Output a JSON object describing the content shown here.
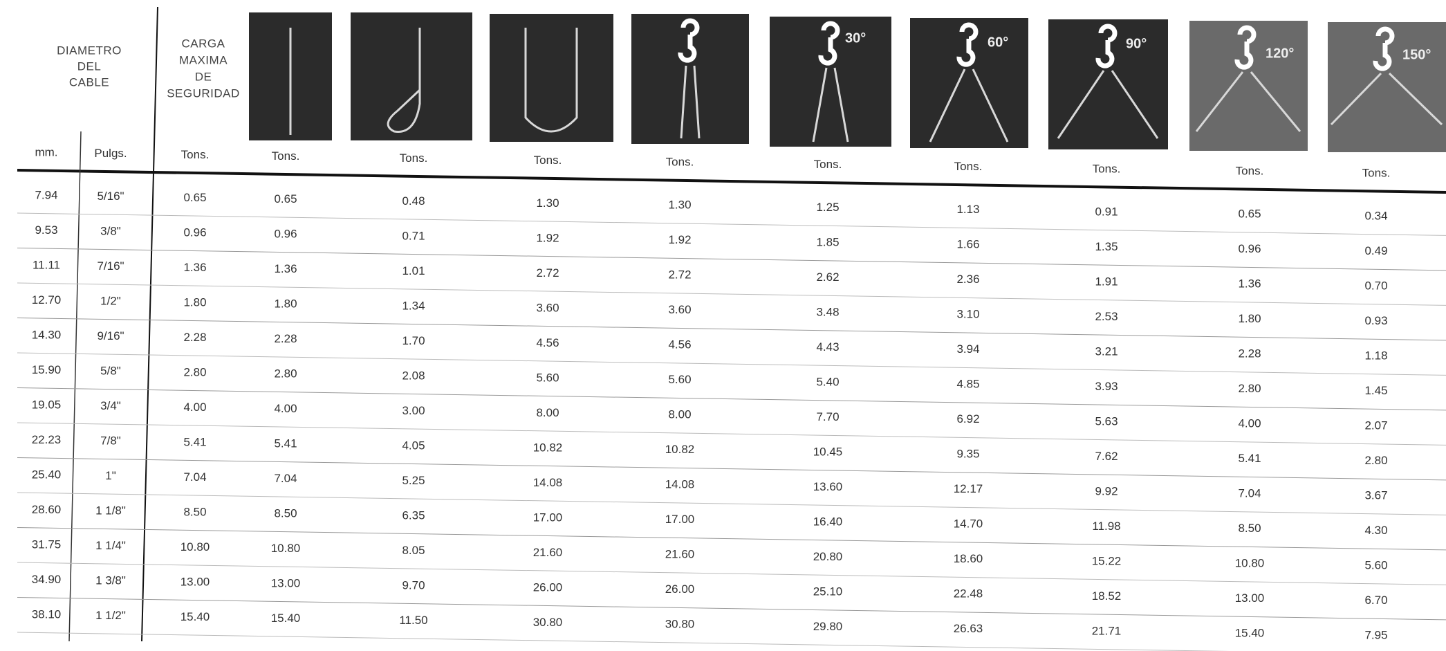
{
  "header": {
    "diameter_title": [
      "DIAMETRO",
      "DEL",
      "CABLE"
    ],
    "load_title": [
      "CARGA",
      "MAXIMA",
      "DE",
      "SEGURIDAD"
    ],
    "angles": [
      "30°",
      "60°",
      "90°",
      "120°",
      "150°"
    ],
    "units": [
      "mm.",
      "Pulgs.",
      "Tons.",
      "Tons.",
      "Tons.",
      "Tons.",
      "Tons.",
      "Tons.",
      "Tons.",
      "Tons.",
      "Tons.",
      "Tons."
    ]
  },
  "table": {
    "rows": [
      [
        "7.94",
        "5/16\"",
        "0.65",
        "0.65",
        "0.48",
        "1.30",
        "1.30",
        "1.25",
        "1.13",
        "0.91",
        "0.65",
        "0.34"
      ],
      [
        "9.53",
        "3/8\"",
        "0.96",
        "0.96",
        "0.71",
        "1.92",
        "1.92",
        "1.85",
        "1.66",
        "1.35",
        "0.96",
        "0.49"
      ],
      [
        "11.11",
        "7/16\"",
        "1.36",
        "1.36",
        "1.01",
        "2.72",
        "2.72",
        "2.62",
        "2.36",
        "1.91",
        "1.36",
        "0.70"
      ],
      [
        "12.70",
        "1/2\"",
        "1.80",
        "1.80",
        "1.34",
        "3.60",
        "3.60",
        "3.48",
        "3.10",
        "2.53",
        "1.80",
        "0.93"
      ],
      [
        "14.30",
        "9/16\"",
        "2.28",
        "2.28",
        "1.70",
        "4.56",
        "4.56",
        "4.43",
        "3.94",
        "3.21",
        "2.28",
        "1.18"
      ],
      [
        "15.90",
        "5/8\"",
        "2.80",
        "2.80",
        "2.08",
        "5.60",
        "5.60",
        "5.40",
        "4.85",
        "3.93",
        "2.80",
        "1.45"
      ],
      [
        "19.05",
        "3/4\"",
        "4.00",
        "4.00",
        "3.00",
        "8.00",
        "8.00",
        "7.70",
        "6.92",
        "5.63",
        "4.00",
        "2.07"
      ],
      [
        "22.23",
        "7/8\"",
        "5.41",
        "5.41",
        "4.05",
        "10.82",
        "10.82",
        "10.45",
        "9.35",
        "7.62",
        "5.41",
        "2.80"
      ],
      [
        "25.40",
        "1\"",
        "7.04",
        "7.04",
        "5.25",
        "14.08",
        "14.08",
        "13.60",
        "12.17",
        "9.92",
        "7.04",
        "3.67"
      ],
      [
        "28.60",
        "1 1/8\"",
        "8.50",
        "8.50",
        "6.35",
        "17.00",
        "17.00",
        "16.40",
        "14.70",
        "11.98",
        "8.50",
        "4.30"
      ],
      [
        "31.75",
        "1 1/4\"",
        "10.80",
        "10.80",
        "8.05",
        "21.60",
        "21.60",
        "20.80",
        "18.60",
        "15.22",
        "10.80",
        "5.60"
      ],
      [
        "34.90",
        "1 3/8\"",
        "13.00",
        "13.00",
        "9.70",
        "26.00",
        "26.00",
        "25.10",
        "22.48",
        "18.52",
        "13.00",
        "6.70"
      ],
      [
        "38.10",
        "1 1/2\"",
        "15.40",
        "15.40",
        "11.50",
        "30.80",
        "30.80",
        "29.80",
        "26.63",
        "21.71",
        "15.40",
        "7.95"
      ]
    ]
  }
}
